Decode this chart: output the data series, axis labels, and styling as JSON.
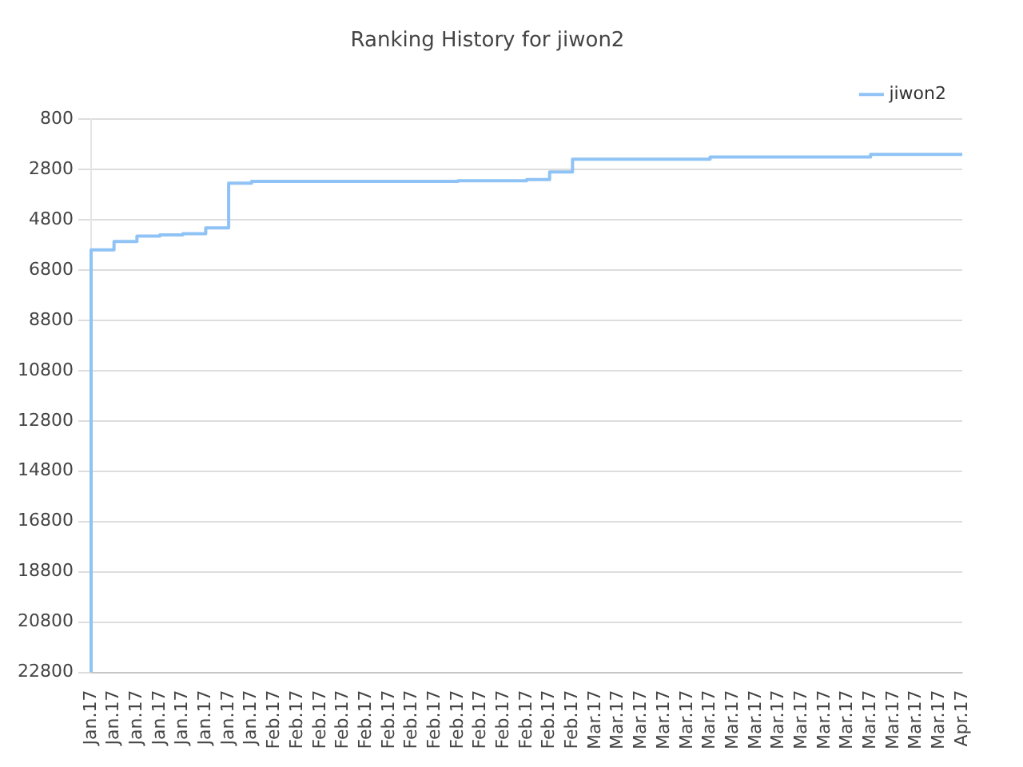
{
  "chart_data": {
    "type": "step",
    "title": "Ranking History for jiwon2",
    "categories": [
      "Jan.17",
      "Jan.17",
      "Jan.17",
      "Jan.17",
      "Jan.17",
      "Jan.17",
      "Jan.17",
      "Jan.17",
      "Feb.17",
      "Feb.17",
      "Feb.17",
      "Feb.17",
      "Feb.17",
      "Feb.17",
      "Feb.17",
      "Feb.17",
      "Feb.17",
      "Feb.17",
      "Feb.17",
      "Feb.17",
      "Feb.17",
      "Feb.17",
      "Mar.17",
      "Mar.17",
      "Mar.17",
      "Mar.17",
      "Mar.17",
      "Mar.17",
      "Mar.17",
      "Mar.17",
      "Mar.17",
      "Mar.17",
      "Mar.17",
      "Mar.17",
      "Mar.17",
      "Mar.17",
      "Mar.17",
      "Mar.17",
      "Apr.17"
    ],
    "series": [
      {
        "name": "jiwon2",
        "color": "#90c3f5",
        "values": [
          22800,
          6000,
          5660,
          5450,
          5400,
          5350,
          5120,
          3340,
          3270,
          3270,
          3270,
          3270,
          3270,
          3270,
          3270,
          3270,
          3270,
          3250,
          3250,
          3250,
          3200,
          2900,
          2390,
          2390,
          2390,
          2390,
          2390,
          2390,
          2300,
          2300,
          2300,
          2300,
          2300,
          2300,
          2300,
          2200,
          2200,
          2200,
          2200
        ]
      }
    ],
    "ylim": [
      22800,
      800
    ],
    "yticks": [
      800,
      2800,
      4800,
      6800,
      8800,
      10800,
      12800,
      14800,
      16800,
      18800,
      20800,
      22800
    ],
    "grid": "y",
    "legend": "top right"
  }
}
